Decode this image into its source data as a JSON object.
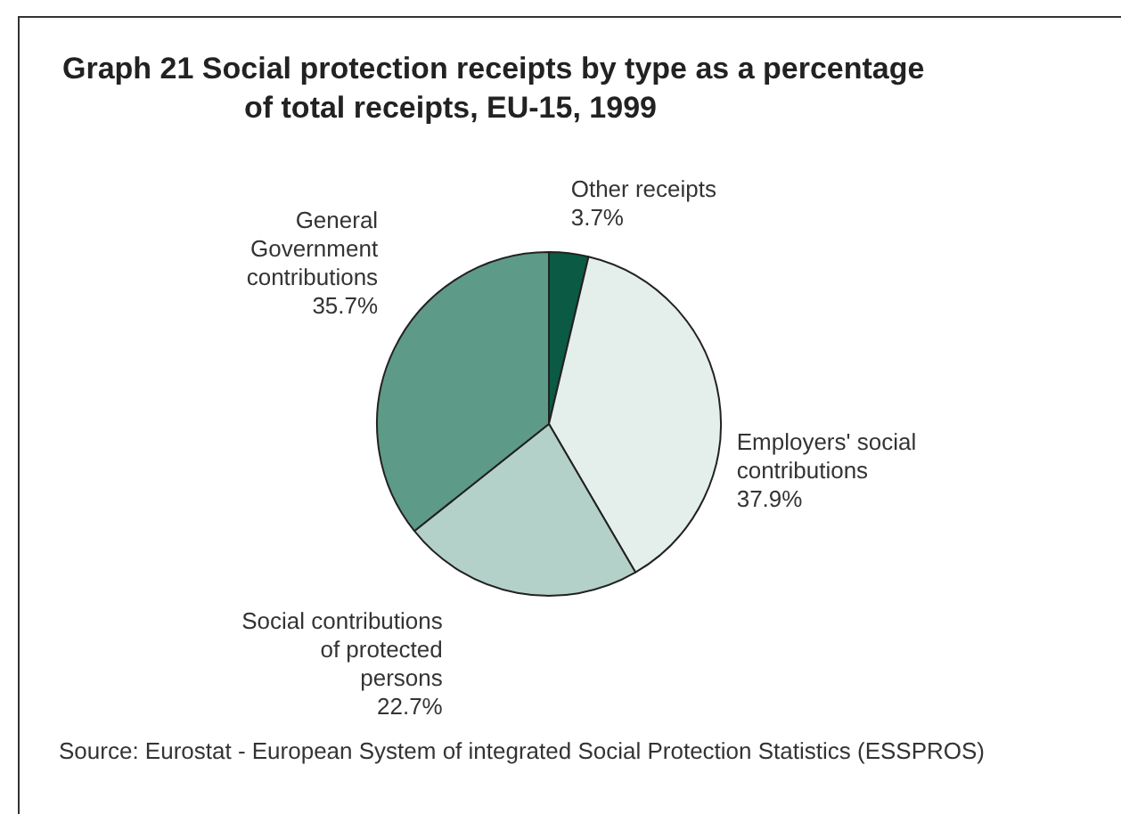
{
  "chart_data": {
    "type": "pie",
    "title": "Graph 21  Social protection receipts by type as a percentage of total receipts, EU-15, 1999",
    "categories": [
      "Other receipts",
      "Employers' social contributions",
      "Social contributions of protected persons",
      "General Government contributions"
    ],
    "values": [
      3.7,
      37.9,
      22.7,
      35.7
    ],
    "value_labels": [
      "3.7%",
      "37.9%",
      "22.7%",
      "35.7%"
    ],
    "colors": [
      "#0b5a43",
      "#e4eeea",
      "#b3d1c8",
      "#5e9a88"
    ],
    "legend": false,
    "annotations": [
      "Source:  Eurostat - European System of integrated Social Protection Statistics (ESSPROS)"
    ]
  }
}
